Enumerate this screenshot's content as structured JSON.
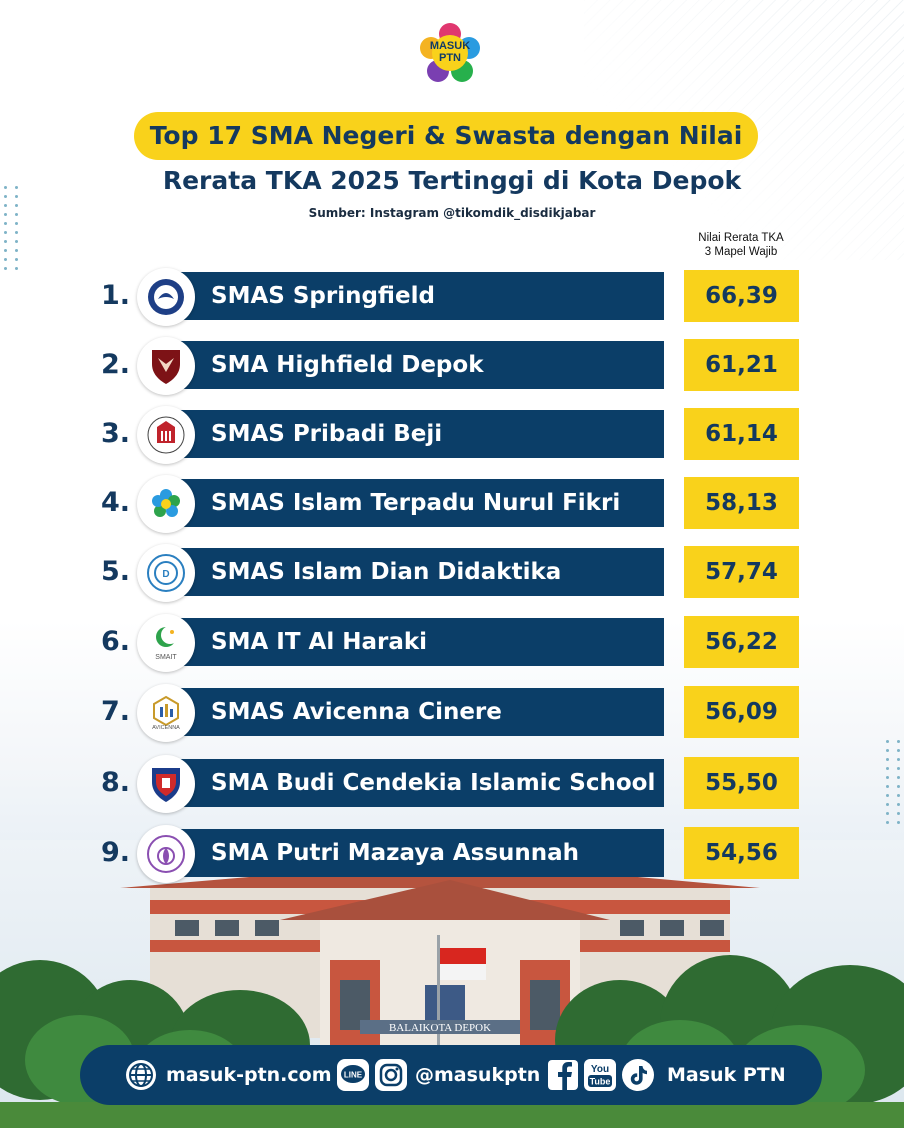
{
  "brand": {
    "logo_text": "MASUK PTN"
  },
  "header": {
    "title_line1": "Top 17 SMA Negeri & Swasta dengan Nilai",
    "title_line2": "Rerata TKA 2025 Tertinggi di Kota Depok",
    "source": "Sumber: Instagram @tikomdik_disdikjabar",
    "column_label_line1": "Nilai Rerata TKA",
    "column_label_line2": "3 Mapel Wajib"
  },
  "colors": {
    "navy": "#0b3e68",
    "yellow": "#f9d21b",
    "title_text": "#14395f"
  },
  "rows": [
    {
      "rank": "1.",
      "name": "SMAS Springfield",
      "score": "66,39",
      "logo_icon": "springfield-crest-icon"
    },
    {
      "rank": "2.",
      "name": "SMA Highfield Depok",
      "score": "61,21",
      "logo_icon": "highfield-shield-icon"
    },
    {
      "rank": "3.",
      "name": "SMAS Pribadi Beji",
      "score": "61,14",
      "logo_icon": "pribadi-emblem-icon"
    },
    {
      "rank": "4.",
      "name": "SMAS Islam Terpadu Nurul Fikri",
      "score": "58,13",
      "logo_icon": "nurul-fikri-flower-icon"
    },
    {
      "rank": "5.",
      "name": "SMAS Islam Dian Didaktika",
      "score": "57,74",
      "logo_icon": "dian-didaktika-seal-icon"
    },
    {
      "rank": "6.",
      "name": "SMA IT Al Haraki",
      "score": "56,22",
      "logo_icon": "al-haraki-crescent-icon",
      "logo_text": "SMAIT"
    },
    {
      "rank": "7.",
      "name": "SMAS Avicenna Cinere",
      "score": "56,09",
      "logo_icon": "avicenna-hexagon-icon",
      "logo_text": "AVICENNA"
    },
    {
      "rank": "8.",
      "name": "SMA Budi Cendekia Islamic School",
      "score": "55,50",
      "logo_icon": "budi-cendekia-shield-icon"
    },
    {
      "rank": "9.",
      "name": "SMA Putri Mazaya Assunnah",
      "score": "54,56",
      "logo_icon": "mazaya-seal-icon"
    }
  ],
  "scene": {
    "building_sign": "BALAIKOTA DEPOK"
  },
  "footer": {
    "website": "masuk-ptn.com",
    "handle": "@masukptn",
    "name": "Masuk PTN",
    "icons": [
      "globe-icon",
      "line-icon",
      "instagram-icon",
      "facebook-icon",
      "youtube-icon",
      "tiktok-icon"
    ],
    "line_label": "LINE",
    "youtube_label_1": "You",
    "youtube_label_2": "Tube"
  }
}
